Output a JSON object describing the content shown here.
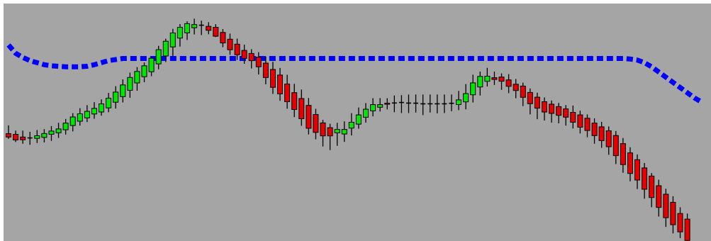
{
  "chart_data": {
    "type": "candlestick",
    "grid": false,
    "legend": "none",
    "colors": {
      "background": "#a5a5a5",
      "frame": "#ffffff",
      "bull": "#00e600",
      "bear": "#e60000",
      "doji": "#000000",
      "wick": "#000000",
      "indicator": "#0000ff"
    },
    "candles": [
      {
        "o": 6.5,
        "h": 14.5,
        "l": 1.5,
        "c": 3.3
      },
      {
        "o": 5.9,
        "h": 9.5,
        "l": -1.5,
        "c": 0.5
      },
      {
        "o": 3.3,
        "h": 9.5,
        "l": -3.2,
        "c": 0.6
      },
      {
        "o": 2.4,
        "h": 8.3,
        "l": -4.2,
        "c": 2.4
      },
      {
        "o": 2.0,
        "h": 10.0,
        "l": -2.5,
        "c": 4.5
      },
      {
        "o": 2.9,
        "h": 10.9,
        "l": -1.9,
        "c": 6.6
      },
      {
        "o": 5.9,
        "h": 13.8,
        "l": -0.5,
        "c": 9.0
      },
      {
        "o": 7.4,
        "h": 17.0,
        "l": 2.4,
        "c": 11.1
      },
      {
        "o": 10.3,
        "h": 20.7,
        "l": 5.6,
        "c": 16.7
      },
      {
        "o": 14.3,
        "h": 26.3,
        "l": 8.7,
        "c": 22.6
      },
      {
        "o": 18.5,
        "h": 31.1,
        "l": 14.3,
        "c": 25.7
      },
      {
        "o": 21.7,
        "h": 34.0,
        "l": 17.7,
        "c": 28.0
      },
      {
        "o": 25.5,
        "h": 36.9,
        "l": 20.9,
        "c": 30.9
      },
      {
        "o": 27.4,
        "h": 39.6,
        "l": 23.9,
        "c": 35.2
      },
      {
        "o": 31.4,
        "h": 45.8,
        "l": 27.2,
        "c": 40.7
      },
      {
        "o": 36.8,
        "h": 52.3,
        "l": 30.7,
        "c": 46.6
      },
      {
        "o": 42.2,
        "h": 58.9,
        "l": 36.6,
        "c": 53.5
      },
      {
        "o": 48.3,
        "h": 65.4,
        "l": 41.1,
        "c": 60.7
      },
      {
        "o": 55.4,
        "h": 70.7,
        "l": 47.9,
        "c": 66.5
      },
      {
        "o": 61.5,
        "h": 75.1,
        "l": 56.1,
        "c": 72.0
      },
      {
        "o": 66.2,
        "h": 80.3,
        "l": 62.0,
        "c": 79.2
      },
      {
        "o": 73.8,
        "h": 91.2,
        "l": 68.6,
        "c": 87.5
      },
      {
        "o": 81.4,
        "h": 98.1,
        "l": 75.6,
        "c": 95.6
      },
      {
        "o": 90.1,
        "h": 107.6,
        "l": 81.4,
        "c": 103.6
      },
      {
        "o": 98.7,
        "h": 112.2,
        "l": 90.5,
        "c": 109.0
      },
      {
        "o": 103.8,
        "h": 114.9,
        "l": 96.9,
        "c": 112.6
      },
      {
        "o": 108.7,
        "h": 117.4,
        "l": 102.2,
        "c": 111.7
      },
      {
        "o": 111.1,
        "h": 115.5,
        "l": 101.6,
        "c": 111.1
      },
      {
        "o": 110.0,
        "h": 114.0,
        "l": 102.4,
        "c": 106.2
      },
      {
        "o": 109.1,
        "h": 112.1,
        "l": 99.7,
        "c": 100.5
      },
      {
        "o": 104.1,
        "h": 107.3,
        "l": 89.9,
        "c": 94.0
      },
      {
        "o": 97.6,
        "h": 103.0,
        "l": 82.6,
        "c": 87.4
      },
      {
        "o": 92.8,
        "h": 98.2,
        "l": 77.6,
        "c": 82.6
      },
      {
        "o": 86.8,
        "h": 92.4,
        "l": 73.9,
        "c": 79.1
      },
      {
        "o": 83.9,
        "h": 88.0,
        "l": 69.4,
        "c": 76.9
      },
      {
        "o": 80.3,
        "h": 85.1,
        "l": 63.6,
        "c": 71.0
      },
      {
        "o": 74.5,
        "h": 80.9,
        "l": 54.1,
        "c": 60.6
      },
      {
        "o": 68.4,
        "h": 75.8,
        "l": 44.9,
        "c": 51.2
      },
      {
        "o": 63.0,
        "h": 69.9,
        "l": 38.2,
        "c": 44.9
      },
      {
        "o": 54.4,
        "h": 63.3,
        "l": 30.6,
        "c": 37.3
      },
      {
        "o": 46.1,
        "h": 54.6,
        "l": 22.5,
        "c": 29.8
      },
      {
        "o": 40.4,
        "h": 49.1,
        "l": 14.1,
        "c": 20.9
      },
      {
        "o": 33.8,
        "h": 40.9,
        "l": 5.7,
        "c": 11.7
      },
      {
        "o": 25.0,
        "h": 30.5,
        "l": 1.1,
        "c": 7.7
      },
      {
        "o": 16.9,
        "h": 19.9,
        "l": -5.9,
        "c": 4.4
      },
      {
        "o": 12.3,
        "h": 16.1,
        "l": -9.3,
        "c": 4.4
      },
      {
        "o": 7.3,
        "h": 17.0,
        "l": -5.2,
        "c": 10.6
      },
      {
        "o": 6.2,
        "h": 18.4,
        "l": -1.4,
        "c": 10.6
      },
      {
        "o": 11.9,
        "h": 26.3,
        "l": 4.8,
        "c": 17.5
      },
      {
        "o": 15.7,
        "h": 31.8,
        "l": 11.3,
        "c": 24.6
      },
      {
        "o": 22.4,
        "h": 36.0,
        "l": 17.1,
        "c": 30.1
      },
      {
        "o": 28.5,
        "h": 40.7,
        "l": 23.2,
        "c": 34.5
      },
      {
        "o": 32.0,
        "h": 40.8,
        "l": 27.9,
        "c": 34.5
      },
      {
        "o": 35.9,
        "h": 40.7,
        "l": 29.9,
        "c": 35.3
      },
      {
        "o": 36.1,
        "h": 43.3,
        "l": 27.2,
        "c": 36.1
      },
      {
        "o": 36.6,
        "h": 43.7,
        "l": 26.4,
        "c": 36.6
      },
      {
        "o": 36.0,
        "h": 44.3,
        "l": 26.4,
        "c": 36.0
      },
      {
        "o": 35.9,
        "h": 44.3,
        "l": 26.8,
        "c": 35.9
      },
      {
        "o": 35.3,
        "h": 44.3,
        "l": 24.4,
        "c": 35.3
      },
      {
        "o": 35.3,
        "h": 44.3,
        "l": 26.9,
        "c": 35.3
      },
      {
        "o": 35.3,
        "h": 44.3,
        "l": 26.1,
        "c": 35.3
      },
      {
        "o": 35.3,
        "h": 44.3,
        "l": 26.4,
        "c": 35.3
      },
      {
        "o": 35.8,
        "h": 44.3,
        "l": 28.2,
        "c": 35.8
      },
      {
        "o": 34.6,
        "h": 47.7,
        "l": 29.2,
        "c": 39.1
      },
      {
        "o": 37.2,
        "h": 54.3,
        "l": 30.0,
        "c": 45.1
      },
      {
        "o": 44.0,
        "h": 63.4,
        "l": 36.6,
        "c": 55.5
      },
      {
        "o": 51.5,
        "h": 66.4,
        "l": 43.3,
        "c": 61.7
      },
      {
        "o": 57.0,
        "h": 70.0,
        "l": 52.0,
        "c": 61.9
      },
      {
        "o": 60.5,
        "h": 66.4,
        "l": 53.5,
        "c": 58.8
      },
      {
        "o": 61.1,
        "h": 64.6,
        "l": 48.8,
        "c": 57.1
      },
      {
        "o": 58.4,
        "h": 63.9,
        "l": 45.6,
        "c": 52.2
      },
      {
        "o": 54.2,
        "h": 59.2,
        "l": 40.7,
        "c": 48.1
      },
      {
        "o": 52.4,
        "h": 55.7,
        "l": 33.1,
        "c": 41.5
      },
      {
        "o": 46.3,
        "h": 50.1,
        "l": 25.1,
        "c": 35.4
      },
      {
        "o": 41.7,
        "h": 46.0,
        "l": 20.5,
        "c": 31.1
      },
      {
        "o": 37.3,
        "h": 41.5,
        "l": 19.2,
        "c": 27.4
      },
      {
        "o": 34.9,
        "h": 38.5,
        "l": 17.2,
        "c": 26.0
      },
      {
        "o": 32.6,
        "h": 36.2,
        "l": 16.5,
        "c": 24.2
      },
      {
        "o": 30.4,
        "h": 34.1,
        "l": 14.3,
        "c": 22.4
      },
      {
        "o": 27.1,
        "h": 33.6,
        "l": 11.5,
        "c": 17.5
      },
      {
        "o": 24.6,
        "h": 28.7,
        "l": 6.7,
        "c": 12.7
      },
      {
        "o": 21.4,
        "h": 25.1,
        "l": 3.0,
        "c": 9.6
      },
      {
        "o": 16.7,
        "h": 21.3,
        "l": -3.2,
        "c": 4.7
      },
      {
        "o": 13.1,
        "h": 17.9,
        "l": -7.1,
        "c": -0.2
      },
      {
        "o": 9.3,
        "h": 13.5,
        "l": -13.8,
        "c": -6.1
      },
      {
        "o": 4.7,
        "h": 9.1,
        "l": -22.8,
        "c": -14.7
      },
      {
        "o": -3.1,
        "h": 2.3,
        "l": -31.2,
        "c": -23.3
      },
      {
        "o": -12.0,
        "h": -6.6,
        "l": -39.4,
        "c": -31.8
      },
      {
        "o": -18.6,
        "h": -13.5,
        "l": -46.9,
        "c": -38.2
      },
      {
        "o": -26.5,
        "h": -21.7,
        "l": -56.2,
        "c": -47.1
      },
      {
        "o": -34.4,
        "h": -31.5,
        "l": -64.4,
        "c": -55.1
      },
      {
        "o": -43.7,
        "h": -37.9,
        "l": -73.4,
        "c": -64.6
      },
      {
        "o": -51.9,
        "h": -46.6,
        "l": -83.4,
        "c": -74.5
      },
      {
        "o": -59.7,
        "h": -53.8,
        "l": -89.7,
        "c": -81.3
      },
      {
        "o": -70.5,
        "h": -64.5,
        "l": -94.2,
        "c": -88.2
      },
      {
        "o": -75.9,
        "h": -70.5,
        "l": -96.8,
        "c": -96.5
      }
    ],
    "indicator": {
      "style": "dotted",
      "points": [
        [
          0,
          92
        ],
        [
          1,
          84
        ],
        [
          2,
          80
        ],
        [
          3,
          77
        ],
        [
          4,
          75
        ],
        [
          5,
          73
        ],
        [
          6,
          72
        ],
        [
          7,
          71.5
        ],
        [
          8,
          71
        ],
        [
          9,
          71
        ],
        [
          10,
          71
        ],
        [
          11,
          71.5
        ],
        [
          12,
          73
        ],
        [
          13,
          75
        ],
        [
          14,
          77
        ],
        [
          15,
          78
        ],
        [
          16,
          79
        ],
        [
          17,
          79
        ],
        [
          18,
          79
        ],
        [
          30,
          79
        ],
        [
          40,
          79
        ],
        [
          50,
          79
        ],
        [
          60,
          79
        ],
        [
          70,
          79
        ],
        [
          80,
          79
        ],
        [
          86,
          79
        ],
        [
          87,
          78.5
        ],
        [
          88,
          77.5
        ],
        [
          89,
          75
        ],
        [
          90,
          71
        ],
        [
          91,
          66
        ],
        [
          92,
          61
        ],
        [
          93,
          56
        ],
        [
          94,
          51
        ],
        [
          95,
          46
        ],
        [
          96,
          41
        ],
        [
          97,
          37
        ]
      ]
    },
    "xlim": [
      -0.5,
      96.5
    ],
    "ylim": [
      -97,
      132
    ]
  }
}
